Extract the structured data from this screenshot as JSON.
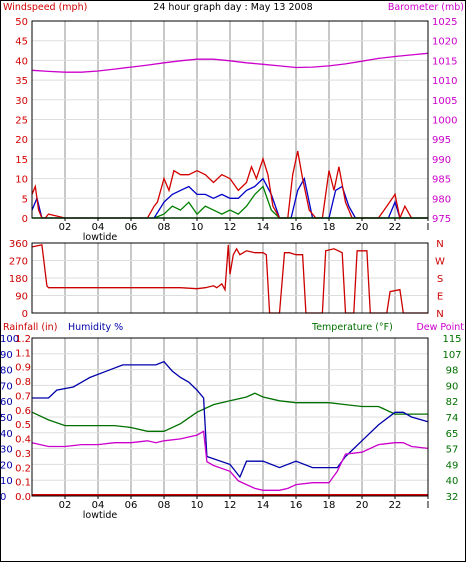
{
  "title": "24 hour graph day : May 13 2008",
  "colors": {
    "frame": "#000000",
    "grid": "#c8c8c8",
    "wind": "#d40000",
    "gust": "#d40000",
    "avg": "#0000c8",
    "green": "#008000",
    "baro": "#cc00cc",
    "dir": "#cc0000",
    "rain": "#cc0000",
    "humidity": "#0000aa",
    "temp": "#007000",
    "dew": "#cc00cc"
  },
  "time_labels": [
    "02",
    "04",
    "06",
    "08",
    "10",
    "12",
    "14",
    "16",
    "18",
    "20",
    "22",
    "I"
  ],
  "tide_label": "lowtide",
  "panels": {
    "wind": {
      "left_title": "Windspeed (mph)",
      "right_title": "Barometer (mb)",
      "left_ticks": [
        "0",
        "5",
        "10",
        "15",
        "20",
        "25",
        "30",
        "35",
        "40",
        "45",
        "50"
      ],
      "right_ticks": [
        "975",
        "980",
        "985",
        "990",
        "995",
        "1000",
        "1005",
        "1010",
        "1015",
        "1020",
        "1025"
      ],
      "ylim_left": [
        0,
        50
      ],
      "ylim_right": [
        975,
        1025
      ]
    },
    "dir": {
      "left_ticks": [
        "0",
        "90",
        "180",
        "270",
        "360"
      ],
      "right_ticks": [
        "N",
        "E",
        "S",
        "W",
        "N"
      ],
      "ylim": [
        0,
        360
      ]
    },
    "climate": {
      "rain_title": "Rainfall (in)",
      "hum_title": "Humidity %",
      "temp_title": "Temperature (°F)",
      "dew_title": "Dew Point",
      "hum_ticks": [
        "0",
        "10",
        "20",
        "30",
        "40",
        "50",
        "60",
        "70",
        "80",
        "90",
        "100"
      ],
      "rain_ticks": [
        "0.0",
        "0.1",
        "0.2",
        "0.3",
        "0.4",
        "0.5",
        "0.6",
        "0.7",
        "0.8",
        "0.9",
        "1.1",
        "1.2"
      ],
      "temp_ticks": [
        "32",
        "40",
        "49",
        "57",
        "65",
        "74",
        "82",
        "90",
        "98",
        "107",
        "115"
      ],
      "ylim_hum": [
        0,
        100
      ],
      "ylim_temp": [
        32,
        115
      ]
    }
  },
  "chart_data": [
    {
      "type": "line",
      "title": "24 hour graph day : May 13 2008",
      "xlabel": "",
      "x_range_hours": [
        0,
        24
      ],
      "series": [
        {
          "name": "Barometer (mb)",
          "axis": "right",
          "x": [
            0,
            1,
            2,
            3,
            4,
            5,
            6,
            7,
            8,
            9,
            10,
            11,
            12,
            13,
            14,
            15,
            16,
            17,
            18,
            19,
            20,
            21,
            22,
            23,
            24
          ],
          "values": [
            1012.5,
            1012.2,
            1012.0,
            1012.0,
            1012.3,
            1012.8,
            1013.3,
            1013.8,
            1014.4,
            1014.9,
            1015.3,
            1015.3,
            1014.9,
            1014.4,
            1014.0,
            1013.6,
            1013.2,
            1013.3,
            1013.6,
            1014.1,
            1014.8,
            1015.5,
            1016.0,
            1016.4,
            1016.8
          ]
        },
        {
          "name": "Windspeed (mph)",
          "axis": "left",
          "x": [
            0,
            0.2,
            0.4,
            0.6,
            0.8,
            1.0,
            2.0,
            3.0,
            4.0,
            5.0,
            6.0,
            7.0,
            7.4,
            7.6,
            8.0,
            8.3,
            8.6,
            9.0,
            9.5,
            10.0,
            10.5,
            11.0,
            11.5,
            12.0,
            12.5,
            13.0,
            13.3,
            13.6,
            14.0,
            14.3,
            14.6,
            15.0,
            15.5,
            15.8,
            16.1,
            16.4,
            16.8,
            17.2,
            17.6,
            18.0,
            18.3,
            18.6,
            19.0,
            19.4,
            19.8,
            20.2,
            20.6,
            21.0,
            21.5,
            22.0,
            22.3,
            22.6,
            23.0,
            24.0
          ],
          "values": [
            6,
            8,
            2,
            0,
            0,
            1,
            0,
            0,
            0,
            0,
            0,
            0,
            3,
            4,
            10,
            7,
            12,
            11,
            11,
            12,
            11,
            9,
            11,
            10,
            7,
            9,
            13,
            10,
            15,
            11,
            3,
            0,
            0,
            11,
            17,
            10,
            2,
            0,
            0,
            12,
            7,
            13,
            4,
            0,
            0,
            0,
            0,
            0,
            3,
            6,
            0,
            3,
            0,
            0
          ]
        },
        {
          "name": "Wind average",
          "axis": "left",
          "x": [
            0,
            0.3,
            0.6,
            7.4,
            8.0,
            8.5,
            9.0,
            9.5,
            10.0,
            10.5,
            11.0,
            11.5,
            12.0,
            12.5,
            13.0,
            13.5,
            14.0,
            14.5,
            15.0,
            15.7,
            16.1,
            16.5,
            17.0,
            18.0,
            18.4,
            18.8,
            19.2,
            19.6,
            21.6,
            22.0,
            22.3,
            24.0
          ],
          "values": [
            2,
            5,
            0,
            0,
            4,
            6,
            7,
            8,
            6,
            6,
            5,
            6,
            5,
            5,
            7,
            8,
            10,
            6,
            0,
            0,
            7,
            10,
            0,
            0,
            7,
            8,
            3,
            0,
            0,
            4,
            0,
            0
          ]
        },
        {
          "name": "Wind lull",
          "axis": "left",
          "x": [
            7.4,
            8.0,
            8.5,
            9.0,
            9.5,
            10.0,
            10.5,
            11.0,
            11.5,
            12.0,
            12.5,
            13.0,
            13.5,
            14.0,
            14.5,
            15.0,
            24.0
          ],
          "values": [
            0,
            1,
            3,
            2,
            4,
            1,
            3,
            2,
            1,
            2,
            1,
            3,
            6,
            8,
            2,
            0,
            0
          ]
        },
        {
          "name": "Wind direction",
          "axis": "dir",
          "x": [
            0,
            0.3,
            0.6,
            0.9,
            1.0,
            3.0,
            5.0,
            7.0,
            8.0,
            9.0,
            10.0,
            10.5,
            11.0,
            11.2,
            11.5,
            11.7,
            11.9,
            12.0,
            12.2,
            12.4,
            12.6,
            13.0,
            13.5,
            14.0,
            14.2,
            14.4,
            15.0,
            15.3,
            15.6,
            16.0,
            16.4,
            16.6,
            17.6,
            17.8,
            18.3,
            18.8,
            19.0,
            19.5,
            19.7,
            20.3,
            20.5,
            21.5,
            21.7,
            22.3,
            22.5,
            24.0
          ],
          "values": [
            340,
            345,
            350,
            140,
            130,
            130,
            130,
            130,
            130,
            130,
            125,
            130,
            140,
            130,
            150,
            120,
            350,
            200,
            300,
            330,
            300,
            320,
            310,
            310,
            300,
            0,
            0,
            310,
            310,
            300,
            300,
            0,
            0,
            320,
            330,
            310,
            0,
            0,
            320,
            320,
            0,
            0,
            110,
            120,
            0,
            0
          ]
        },
        {
          "name": "Humidity %",
          "axis": "hum",
          "x": [
            0,
            1.0,
            1.5,
            2.5,
            3.5,
            4.5,
            5.5,
            6.5,
            7.5,
            8.0,
            8.5,
            9.0,
            9.5,
            10.0,
            10.4,
            10.6,
            12.0,
            12.6,
            13.0,
            14.0,
            15.0,
            16.0,
            17.0,
            18.0,
            18.5,
            19.0,
            19.5,
            20.0,
            21.0,
            22.0,
            22.5,
            23.0,
            24.0
          ],
          "values": [
            62,
            62,
            67,
            69,
            75,
            79,
            83,
            83,
            83,
            85,
            79,
            75,
            72,
            67,
            62,
            25,
            20,
            12,
            22,
            22,
            18,
            22,
            18,
            18,
            18,
            25,
            30,
            35,
            45,
            53,
            53,
            50,
            47
          ]
        },
        {
          "name": "Temperature (°F)",
          "axis": "temp",
          "x": [
            0,
            1,
            2,
            3,
            4,
            5,
            6,
            7,
            8,
            9,
            10,
            11,
            12,
            13,
            13.5,
            14,
            15,
            16,
            17,
            18,
            19,
            20,
            21,
            22,
            23,
            24
          ],
          "values": [
            76,
            72,
            69,
            69,
            69,
            69,
            68,
            66,
            66,
            70,
            76,
            80,
            82,
            84,
            86,
            84,
            82,
            81,
            81,
            81,
            80,
            79,
            79,
            75,
            75,
            75
          ]
        },
        {
          "name": "Dew Point",
          "axis": "temp",
          "x": [
            0,
            1,
            2,
            3,
            4,
            5,
            6,
            7,
            7.5,
            8,
            9,
            10,
            10.4,
            10.6,
            11,
            12,
            12.5,
            13,
            13.5,
            14,
            15,
            15.5,
            16,
            17,
            18,
            18.5,
            19,
            20,
            21,
            22,
            22.5,
            23,
            24
          ],
          "values": [
            60,
            58,
            58,
            59,
            59,
            60,
            60,
            61,
            60,
            61,
            62,
            64,
            66,
            50,
            48,
            45,
            40,
            38,
            36,
            35,
            35,
            36,
            38,
            39,
            39,
            45,
            54,
            55,
            59,
            60,
            60,
            58,
            57
          ]
        },
        {
          "name": "Rainfall (in)",
          "axis": "rain",
          "x": [
            0,
            24
          ],
          "values": [
            0.0,
            0.0
          ]
        }
      ]
    }
  ]
}
